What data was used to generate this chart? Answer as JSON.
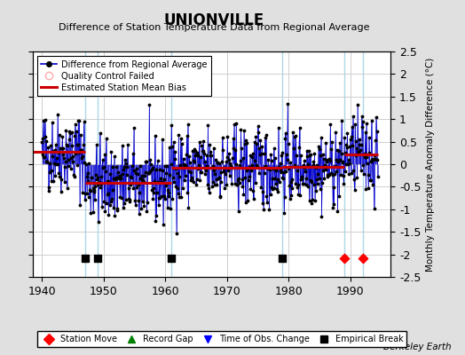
{
  "title": "UNIONVILLE",
  "subtitle": "Difference of Station Temperature Data from Regional Average",
  "ylabel": "Monthly Temperature Anomaly Difference (°C)",
  "xlim": [
    1938.5,
    1996.5
  ],
  "ylim": [
    -2.5,
    2.5
  ],
  "xticks": [
    1940,
    1950,
    1960,
    1970,
    1980,
    1990
  ],
  "yticks": [
    -2.5,
    -2,
    -1.5,
    -1,
    -0.5,
    0,
    0.5,
    1,
    1.5,
    2,
    2.5
  ],
  "ytick_labels": [
    "-2.5",
    "-2",
    "-1.5",
    "-1",
    "-0.5",
    "0",
    "0.5",
    "1",
    "1.5",
    "2",
    "2.5"
  ],
  "background_color": "#e0e0e0",
  "plot_bg_color": "#ffffff",
  "line_color": "#0000cc",
  "bias_color": "#cc0000",
  "grid_color": "#c8c8c8",
  "empirical_breaks": [
    1947,
    1949,
    1961,
    1979
  ],
  "station_moves": [
    1989,
    1992
  ],
  "bias_segments": [
    {
      "x_start": 1938.5,
      "x_end": 1947.0,
      "bias": 0.27
    },
    {
      "x_start": 1947.0,
      "x_end": 1961.0,
      "bias": -0.42
    },
    {
      "x_start": 1961.0,
      "x_end": 1979.0,
      "bias": -0.08
    },
    {
      "x_start": 1979.0,
      "x_end": 1989.0,
      "bias": -0.05
    },
    {
      "x_start": 1989.0,
      "x_end": 1994.5,
      "bias": 0.22
    }
  ],
  "break_line_color": "#add8e6",
  "berkeley_earth_text": "Berkeley Earth",
  "data_start": 1940.0,
  "data_end": 1994.5,
  "noise_std": 0.45,
  "seed": 42
}
